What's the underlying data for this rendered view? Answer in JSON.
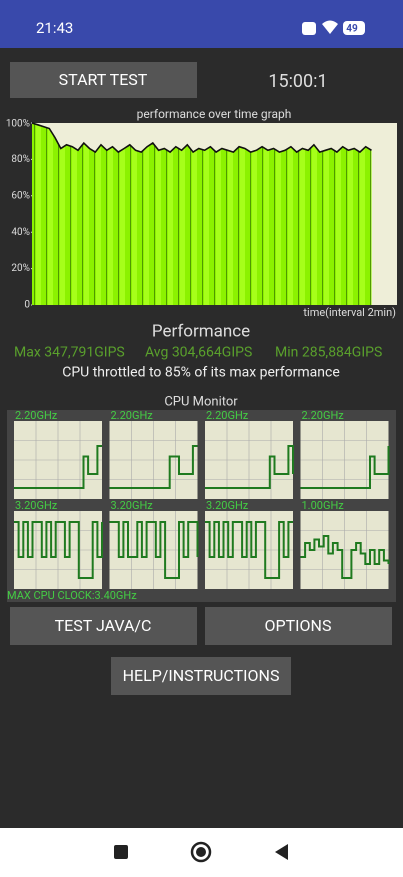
{
  "status_bar": {
    "time": "21:43",
    "battery": "49"
  },
  "buttons": {
    "start": "START TEST",
    "test": "TEST JAVA/C",
    "options": "OPTIONS",
    "help": "HELP/INSTRUCTIONS"
  },
  "timer": "15:00:1",
  "chart_data": {
    "type": "line",
    "title": "performance over time graph",
    "x_label": "time(interval 2min)",
    "ylim": [
      0,
      100
    ],
    "yticks": [
      {
        "value": 100,
        "label": "100%"
      },
      {
        "value": 80,
        "label": "80%"
      },
      {
        "value": 60,
        "label": "60%"
      },
      {
        "value": 40,
        "label": "40%"
      },
      {
        "value": 20,
        "label": "20%"
      },
      0
    ],
    "values": [
      100,
      99,
      98,
      97,
      92,
      86,
      88,
      87,
      85,
      89,
      86,
      84,
      88,
      85,
      87,
      84,
      86,
      88,
      85,
      84,
      87,
      89,
      85,
      86,
      84,
      87,
      85,
      88,
      84,
      86,
      85,
      87,
      84,
      86,
      85,
      84,
      87,
      86,
      84,
      85,
      87,
      85,
      86,
      84,
      85,
      87,
      84,
      86,
      85,
      88,
      84,
      85,
      86,
      84,
      87,
      85,
      86,
      84,
      87,
      85
    ]
  },
  "performance": {
    "title": "Performance",
    "max": "Max 347,791GIPS",
    "avg": "Avg 304,664GIPS",
    "min": "Min 285,884GIPS",
    "note": "CPU throttled to 85% of its max performance"
  },
  "cpu_monitor": {
    "title": "CPU Monitor",
    "max_clock": "MAX CPU CLOCK:3.40GHz",
    "cores": [
      {
        "label": "2.20GHz",
        "values": [
          10,
          10,
          10,
          10,
          10,
          10,
          10,
          10,
          10,
          10,
          10,
          10,
          10,
          10,
          10,
          55,
          30,
          30,
          70,
          70
        ]
      },
      {
        "label": "2.20GHz",
        "values": [
          10,
          10,
          10,
          10,
          10,
          10,
          10,
          10,
          10,
          10,
          10,
          10,
          10,
          55,
          55,
          30,
          30,
          30,
          70,
          70
        ]
      },
      {
        "label": "2.20GHz",
        "values": [
          10,
          10,
          10,
          10,
          10,
          10,
          10,
          10,
          10,
          10,
          10,
          10,
          10,
          10,
          55,
          30,
          30,
          30,
          70,
          30
        ]
      },
      {
        "label": "2.20GHz",
        "values": [
          10,
          10,
          10,
          10,
          10,
          10,
          10,
          10,
          10,
          10,
          10,
          10,
          10,
          10,
          10,
          55,
          30,
          30,
          30,
          70
        ]
      },
      {
        "label": "3.20GHz",
        "values": [
          90,
          40,
          90,
          40,
          90,
          90,
          40,
          90,
          40,
          90,
          90,
          40,
          90,
          90,
          10,
          10,
          10,
          90,
          40,
          90
        ]
      },
      {
        "label": "3.20GHz",
        "values": [
          90,
          90,
          40,
          90,
          40,
          40,
          90,
          40,
          90,
          90,
          40,
          90,
          10,
          10,
          10,
          90,
          40,
          90,
          90,
          40
        ]
      },
      {
        "label": "3.20GHz",
        "values": [
          90,
          40,
          90,
          40,
          90,
          40,
          90,
          90,
          40,
          90,
          40,
          90,
          90,
          10,
          10,
          10,
          90,
          40,
          90,
          90
        ]
      },
      {
        "label": "1.00GHz",
        "values": [
          40,
          60,
          50,
          65,
          55,
          70,
          45,
          60,
          50,
          10,
          10,
          50,
          60,
          45,
          30,
          50,
          30,
          50,
          35,
          30
        ]
      }
    ]
  }
}
